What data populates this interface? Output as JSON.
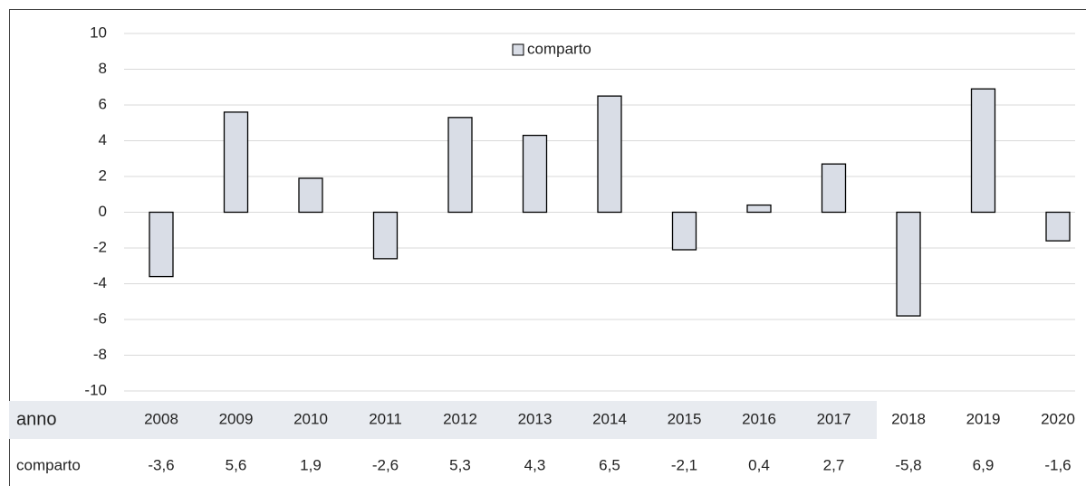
{
  "chart_data": {
    "type": "bar",
    "categories": [
      "2008",
      "2009",
      "2010",
      "2011",
      "2012",
      "2013",
      "2014",
      "2015",
      "2016",
      "2017",
      "2018",
      "2019",
      "2020"
    ],
    "series": [
      {
        "name": "comparto",
        "color": "#d9dde6",
        "values": [
          -3.6,
          5.6,
          1.9,
          -2.6,
          5.3,
          4.3,
          6.5,
          -2.1,
          0.4,
          2.7,
          -5.8,
          6.9,
          -1.6
        ],
        "value_labels": [
          "-3,6",
          "5,6",
          "1,9",
          "-2,6",
          "5,3",
          "4,3",
          "6,5",
          "-2,1",
          "0,4",
          "2,7",
          "-5,8",
          "6,9",
          "-1,6"
        ]
      }
    ],
    "table_header": "anno",
    "ylim": [
      -10,
      10
    ],
    "yticks": [
      -10,
      -8,
      -6,
      -4,
      -2,
      0,
      2,
      4,
      6,
      8,
      10
    ],
    "grid": true,
    "legend": "top"
  }
}
